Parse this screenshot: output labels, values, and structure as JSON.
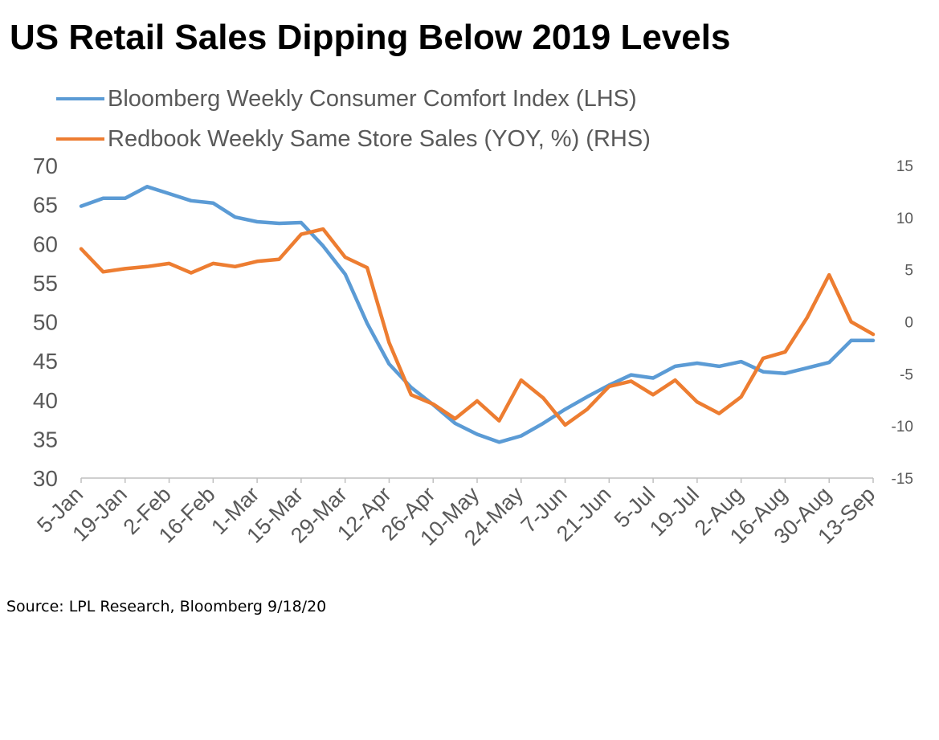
{
  "chart_data": {
    "type": "line",
    "title": "US Retail Sales Dipping Below 2019 Levels",
    "x": [
      "5-Jan",
      "12-Jan",
      "19-Jan",
      "26-Jan",
      "2-Feb",
      "9-Feb",
      "16-Feb",
      "23-Feb",
      "1-Mar",
      "8-Mar",
      "15-Mar",
      "22-Mar",
      "29-Mar",
      "5-Apr",
      "12-Apr",
      "19-Apr",
      "26-Apr",
      "3-May",
      "10-May",
      "17-May",
      "24-May",
      "31-May",
      "7-Jun",
      "14-Jun",
      "21-Jun",
      "28-Jun",
      "5-Jul",
      "12-Jul",
      "19-Jul",
      "26-Jul",
      "2-Aug",
      "9-Aug",
      "16-Aug",
      "23-Aug",
      "30-Aug",
      "6-Sep",
      "13-Sep"
    ],
    "tick_labels": [
      "5-Jan",
      "19-Jan",
      "2-Feb",
      "16-Feb",
      "1-Mar",
      "15-Mar",
      "29-Mar",
      "12-Apr",
      "26-Apr",
      "10-May",
      "24-May",
      "7-Jun",
      "21-Jun",
      "5-Jul",
      "19-Jul",
      "2-Aug",
      "16-Aug",
      "30-Aug",
      "13-Sep"
    ],
    "series": [
      {
        "name": "Bloomberg Weekly Consumer Comfort Index (LHS)",
        "axis": "left",
        "color": "#5b9bd5",
        "values": [
          64.8,
          65.8,
          65.8,
          67.3,
          66.4,
          65.5,
          65.2,
          63.4,
          62.8,
          62.6,
          62.7,
          59.7,
          56.1,
          49.8,
          44.6,
          41.6,
          39.4,
          37.0,
          35.6,
          34.6,
          35.4,
          37.0,
          38.8,
          40.4,
          41.9,
          43.2,
          42.8,
          44.3,
          44.7,
          44.3,
          44.9,
          43.6,
          43.4,
          44.1,
          44.8,
          47.6,
          47.6
        ]
      },
      {
        "name": "Redbook Weekly Same Store Sales (YOY, %) (RHS)",
        "axis": "right",
        "color": "#ed7d31",
        "values": [
          7.0,
          4.8,
          5.1,
          5.3,
          5.6,
          4.7,
          5.6,
          5.3,
          5.8,
          6.0,
          8.4,
          8.9,
          6.2,
          5.2,
          -2.0,
          -7.0,
          -7.9,
          -9.3,
          -7.6,
          -9.5,
          -5.6,
          -7.3,
          -9.9,
          -8.4,
          -6.2,
          -5.7,
          -7.0,
          -5.6,
          -7.7,
          -8.8,
          -7.2,
          -3.5,
          -2.9,
          0.4,
          4.5,
          0.0,
          -1.2
        ]
      }
    ],
    "y_left": {
      "min": 30,
      "max": 70,
      "step": 5
    },
    "y_right": {
      "min": -15,
      "max": 15,
      "step": 5
    },
    "grid": false,
    "legend_position": "top-left"
  },
  "source": "Source: LPL Research, Bloomberg 9/18/20"
}
